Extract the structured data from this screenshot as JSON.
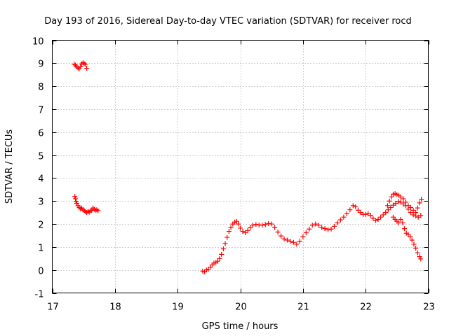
{
  "chart_data": {
    "type": "scatter",
    "title": "Day 193 of 2016, Sidereal Day-to-day VTEC variation (SDTVAR) for receiver rocd",
    "xlabel": "GPS time / hours",
    "ylabel": "SDTVAR / TECUs",
    "xlim": [
      17,
      23
    ],
    "ylim": [
      -1,
      10
    ],
    "xticks": [
      17,
      18,
      19,
      20,
      21,
      22,
      23
    ],
    "yticks": [
      -1,
      0,
      1,
      2,
      3,
      4,
      5,
      6,
      7,
      8,
      9,
      10
    ],
    "grid": true,
    "marker": "+",
    "colors": {
      "series": "#ff0000",
      "grid": "#a0a0a0",
      "axes": "#000000"
    },
    "series": [
      {
        "points": [
          [
            17.35,
            8.95
          ],
          [
            17.37,
            8.92
          ],
          [
            17.39,
            8.85
          ],
          [
            17.41,
            8.8
          ],
          [
            17.43,
            8.75
          ],
          [
            17.45,
            8.85
          ],
          [
            17.47,
            8.97
          ],
          [
            17.49,
            9.02
          ],
          [
            17.51,
            8.98
          ],
          [
            17.53,
            8.95
          ],
          [
            17.55,
            8.78
          ],
          [
            17.36,
            3.2
          ],
          [
            17.37,
            3.1
          ],
          [
            17.38,
            2.98
          ],
          [
            17.39,
            2.9
          ],
          [
            17.41,
            2.8
          ],
          [
            17.43,
            2.72
          ],
          [
            17.45,
            2.66
          ],
          [
            17.47,
            2.7
          ],
          [
            17.49,
            2.62
          ],
          [
            17.51,
            2.58
          ],
          [
            17.53,
            2.53
          ],
          [
            17.55,
            2.5
          ],
          [
            17.57,
            2.55
          ],
          [
            17.59,
            2.52
          ],
          [
            17.61,
            2.58
          ],
          [
            17.63,
            2.6
          ],
          [
            17.65,
            2.7
          ],
          [
            17.67,
            2.64
          ],
          [
            17.69,
            2.6
          ],
          [
            17.71,
            2.62
          ],
          [
            17.73,
            2.58
          ],
          [
            19.4,
            -0.05
          ],
          [
            19.43,
            -0.08
          ],
          [
            19.46,
            0.0
          ],
          [
            19.49,
            0.03
          ],
          [
            19.52,
            0.12
          ],
          [
            19.55,
            0.22
          ],
          [
            19.58,
            0.3
          ],
          [
            19.61,
            0.32
          ],
          [
            19.64,
            0.38
          ],
          [
            19.67,
            0.5
          ],
          [
            19.7,
            0.68
          ],
          [
            19.73,
            0.92
          ],
          [
            19.76,
            1.15
          ],
          [
            19.79,
            1.42
          ],
          [
            19.82,
            1.68
          ],
          [
            19.85,
            1.85
          ],
          [
            19.88,
            2.0
          ],
          [
            19.91,
            2.08
          ],
          [
            19.94,
            2.12
          ],
          [
            19.97,
            2.0
          ],
          [
            20.0,
            1.82
          ],
          [
            20.04,
            1.68
          ],
          [
            20.08,
            1.62
          ],
          [
            20.12,
            1.72
          ],
          [
            20.16,
            1.85
          ],
          [
            20.2,
            1.95
          ],
          [
            20.25,
            1.98
          ],
          [
            20.3,
            1.96
          ],
          [
            20.35,
            1.95
          ],
          [
            20.4,
            1.98
          ],
          [
            20.45,
            2.02
          ],
          [
            20.5,
            2.0
          ],
          [
            20.55,
            1.85
          ],
          [
            20.6,
            1.65
          ],
          [
            20.65,
            1.48
          ],
          [
            20.7,
            1.35
          ],
          [
            20.75,
            1.3
          ],
          [
            20.8,
            1.25
          ],
          [
            20.85,
            1.2
          ],
          [
            20.9,
            1.12
          ],
          [
            20.95,
            1.25
          ],
          [
            21.0,
            1.45
          ],
          [
            21.05,
            1.62
          ],
          [
            21.1,
            1.78
          ],
          [
            21.15,
            1.95
          ],
          [
            21.2,
            2.0
          ],
          [
            21.25,
            1.95
          ],
          [
            21.3,
            1.85
          ],
          [
            21.35,
            1.8
          ],
          [
            21.4,
            1.75
          ],
          [
            21.45,
            1.78
          ],
          [
            21.5,
            1.9
          ],
          [
            21.55,
            2.05
          ],
          [
            21.6,
            2.18
          ],
          [
            21.65,
            2.3
          ],
          [
            21.7,
            2.45
          ],
          [
            21.75,
            2.62
          ],
          [
            21.8,
            2.8
          ],
          [
            21.84,
            2.75
          ],
          [
            21.88,
            2.6
          ],
          [
            21.92,
            2.5
          ],
          [
            21.96,
            2.42
          ],
          [
            22.0,
            2.42
          ],
          [
            22.04,
            2.45
          ],
          [
            22.08,
            2.38
          ],
          [
            22.12,
            2.25
          ],
          [
            22.16,
            2.15
          ],
          [
            22.2,
            2.2
          ],
          [
            22.24,
            2.3
          ],
          [
            22.28,
            2.4
          ],
          [
            22.32,
            2.5
          ],
          [
            22.36,
            2.62
          ],
          [
            22.4,
            2.72
          ],
          [
            22.44,
            2.82
          ],
          [
            22.48,
            2.9
          ],
          [
            22.52,
            2.98
          ],
          [
            22.56,
            2.95
          ],
          [
            22.6,
            2.88
          ],
          [
            22.64,
            2.8
          ],
          [
            22.68,
            2.65
          ],
          [
            22.72,
            2.5
          ],
          [
            22.76,
            2.4
          ],
          [
            22.8,
            2.35
          ],
          [
            22.84,
            2.3
          ],
          [
            22.88,
            2.38
          ],
          [
            22.35,
            2.8
          ],
          [
            22.38,
            3.0
          ],
          [
            22.41,
            3.18
          ],
          [
            22.44,
            3.3
          ],
          [
            22.47,
            3.32
          ],
          [
            22.5,
            3.28
          ],
          [
            22.53,
            3.25
          ],
          [
            22.56,
            3.18
          ],
          [
            22.6,
            3.1
          ],
          [
            22.64,
            2.95
          ],
          [
            22.68,
            2.8
          ],
          [
            22.72,
            2.72
          ],
          [
            22.76,
            2.6
          ],
          [
            22.8,
            2.5
          ],
          [
            22.83,
            2.7
          ],
          [
            22.86,
            2.92
          ],
          [
            22.89,
            3.08
          ],
          [
            22.44,
            2.3
          ],
          [
            22.47,
            2.2
          ],
          [
            22.5,
            2.12
          ],
          [
            22.53,
            2.05
          ],
          [
            22.56,
            2.2
          ],
          [
            22.59,
            2.05
          ],
          [
            22.62,
            1.8
          ],
          [
            22.65,
            1.6
          ],
          [
            22.68,
            1.55
          ],
          [
            22.71,
            1.45
          ],
          [
            22.74,
            1.3
          ],
          [
            22.77,
            1.12
          ],
          [
            22.8,
            0.95
          ],
          [
            22.83,
            0.75
          ],
          [
            22.86,
            0.58
          ],
          [
            22.88,
            0.48
          ]
        ]
      }
    ]
  }
}
